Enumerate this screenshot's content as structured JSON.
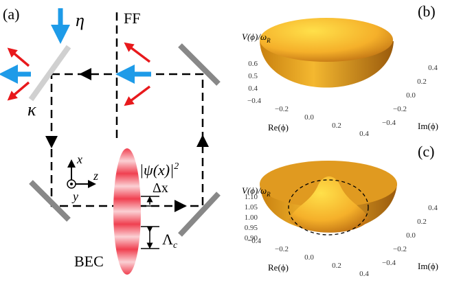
{
  "panel_a": {
    "label": "(a)",
    "pump": "η",
    "far_field": "FF",
    "decay": "κ",
    "density": {
      "label": "|ψ(x)|",
      "superscript": "2"
    },
    "spacing": "Δx",
    "period": {
      "label": "Λ",
      "subscript": "c"
    },
    "condensate": "BEC",
    "axes": {
      "x": "x",
      "z": "z",
      "y": "y"
    }
  },
  "panel_b": {
    "label": "(b)",
    "z_label": {
      "label": "V(ϕ)/ω",
      "subscript": "R"
    },
    "z_ticks": [
      "0.6",
      "0.5",
      "0.4"
    ],
    "re_ticks": [
      "−0.4",
      "−0.2",
      "0.0",
      "0.2",
      "0.4"
    ],
    "im_ticks": [
      "0.4",
      "0.2",
      "0.0",
      "−0.2",
      "−0.4"
    ],
    "re_label": "Re(ϕ)",
    "im_label": "Im(ϕ)"
  },
  "panel_c": {
    "label": "(c)",
    "z_label": {
      "label": "V(ϕ)/ω",
      "subscript": "R"
    },
    "z_ticks": [
      "1.10",
      "1.05",
      "1.00",
      "0.95",
      "0.90"
    ],
    "re_ticks": [
      "−0.4",
      "−0.2",
      "0.0",
      "0.2",
      "0.4"
    ],
    "im_ticks": [
      "0.4",
      "0.2",
      "0.0",
      "−0.2",
      "−0.4"
    ],
    "re_label": "Re(ϕ)",
    "im_label": "Im(ϕ)"
  }
}
